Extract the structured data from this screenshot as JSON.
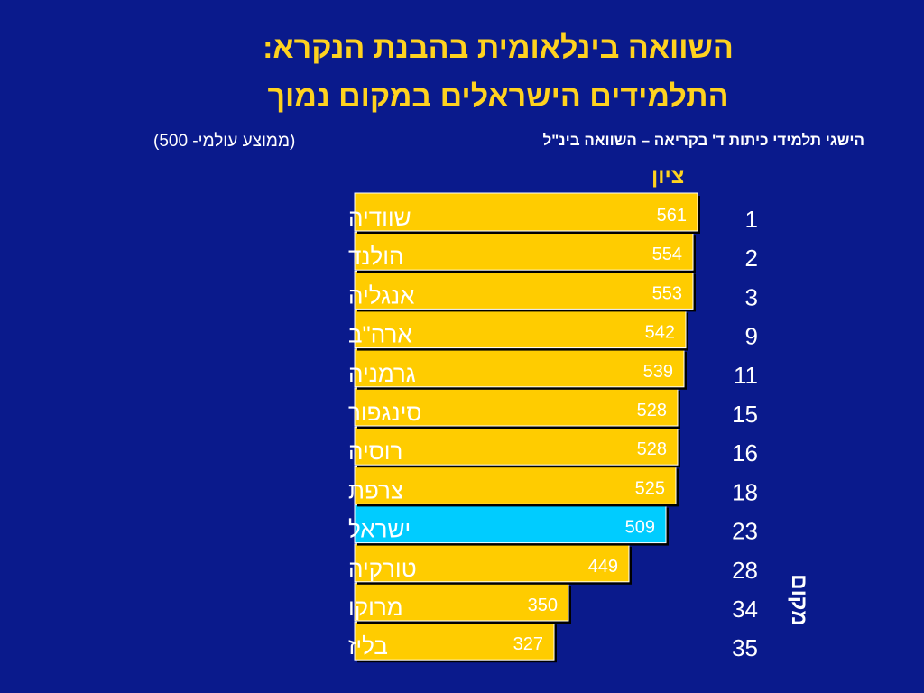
{
  "title_line1": "השוואה בינלאומית בהבנת הנקרא:",
  "title_line2": "התלמידים הישראלים במקום נמוך",
  "subtitle": "הישגי תלמידי כיתות ד' בקריאה – השוואה בינ\"ל",
  "subnote": "(ממוצע עולמי- 500)",
  "score_header": "ציון",
  "rank_header": "מקום",
  "colors": {
    "background": "#0a1a8c",
    "bar": "#ffcc00",
    "highlight": "#00ccff",
    "title": "#ffd21f"
  },
  "chart_data": {
    "type": "bar",
    "orientation": "horizontal",
    "categories": [
      "שוודיה",
      "הולנד",
      "אנגליה",
      "ארה\"ב",
      "גרמניה",
      "סינגפור",
      "רוסיה",
      "צרפת",
      "ישראל",
      "טורקיה",
      "מרוקו",
      "בליז"
    ],
    "values": [
      561,
      554,
      553,
      542,
      539,
      528,
      528,
      525,
      509,
      449,
      350,
      327
    ],
    "ranks": [
      "1",
      "2",
      "3",
      "9",
      "11",
      "15",
      "16",
      "18",
      "23",
      "28",
      "34",
      "35"
    ],
    "highlight": "ישראל",
    "xlim": [
      0,
      561
    ]
  }
}
